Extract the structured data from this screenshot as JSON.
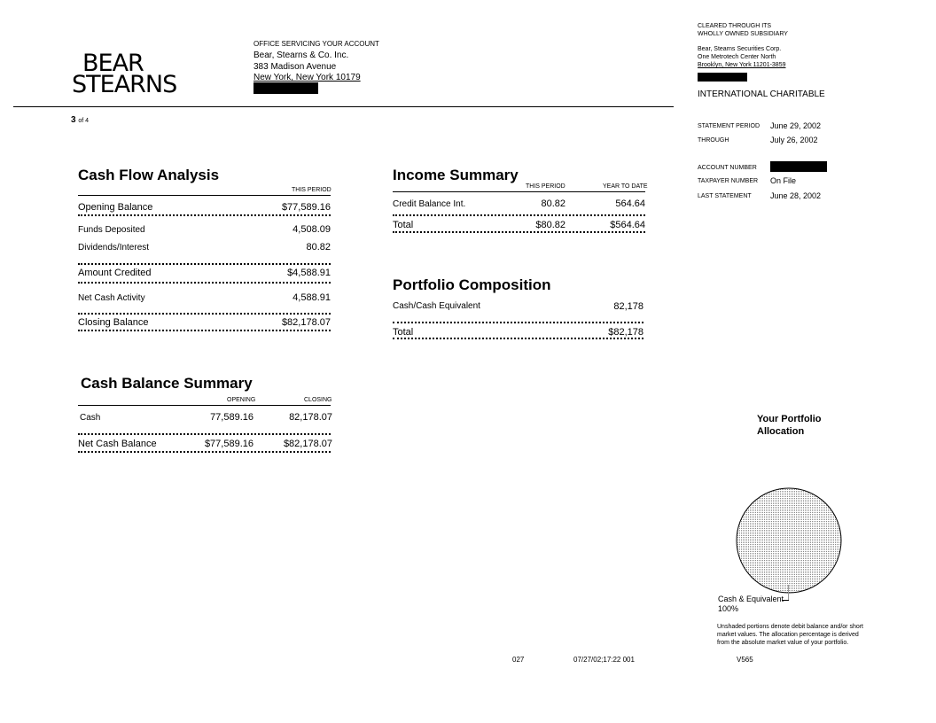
{
  "logo": {
    "line1": "BEAR",
    "line2": "STEARNS"
  },
  "office": {
    "label": "OFFICE SERVICING YOUR ACCOUNT",
    "name": "Bear, Stearns & Co. Inc.",
    "street": "383 Madison Avenue",
    "city": "New York, New York  10179"
  },
  "clearing": {
    "line1": "CLEARED  THROUGH  ITS",
    "line2": "WHOLLY  OWNED  SUBSIDIARY",
    "name": "Bear, Stearns Securities Corp.",
    "street": "One Metrotech  Center  North",
    "city": "Brooklyn,  New York  11201-3859"
  },
  "account_name": "INTERNATIONAL  CHARITABLE",
  "page": {
    "number": "3",
    "of": "of 4"
  },
  "statement": {
    "period_label": "STATEMENT  PERIOD",
    "period": "June 29, 2002",
    "through_label": "THROUGH",
    "through": "July 26, 2002",
    "account_label": "ACCOUNT  NUMBER",
    "taxpayer_label": "TAXPAYER  NUMBER",
    "taxpayer": "On File",
    "last_label": "LAST  STATEMENT",
    "last": "June 28, 2002"
  },
  "cash_flow": {
    "title": "Cash Flow Analysis",
    "col": "THIS PERIOD",
    "rows": [
      {
        "label": "Opening Balance",
        "value": "$77,589.16"
      },
      {
        "label": "Funds Deposited",
        "value": "4,508.09"
      },
      {
        "label": "Dividends/Interest",
        "value": "80.82"
      },
      {
        "label": "Amount Credited",
        "value": "$4,588.91"
      },
      {
        "label": "Net Cash Activity",
        "value": "4,588.91"
      },
      {
        "label": "Closing Balance",
        "value": "$82,178.07"
      }
    ]
  },
  "income": {
    "title": "Income Summary",
    "col1": "THIS PERIOD",
    "col2": "YEAR TO DATE",
    "rows": [
      {
        "label": "Credit Balance Int.",
        "period": "80.82",
        "ytd": "564.64"
      },
      {
        "label": "Total",
        "period": "$80.82",
        "ytd": "$564.64"
      }
    ]
  },
  "portfolio": {
    "title": "Portfolio Composition",
    "rows": [
      {
        "label": "Cash/Cash Equivalent",
        "value": "82,178"
      },
      {
        "label": "Total",
        "value": "$82,178"
      }
    ]
  },
  "cash_balance": {
    "title": "Cash Balance Summary",
    "col1": "OPENING",
    "col2": "CLOSING",
    "rows": [
      {
        "label": "Cash",
        "opening": "77,589.16",
        "closing": "82,178.07"
      },
      {
        "label": "Net Cash Balance",
        "opening": "$77,589.16",
        "closing": "$82,178.07"
      }
    ]
  },
  "allocation": {
    "title1": "Your Portfolio",
    "title2": "Allocation",
    "label": "Cash & Equivalent",
    "percent": "100%",
    "note1": "Unshaded portions  denote  debit  balance  and/or  short",
    "note2": "market  values.   The  allocation  percentage  is derived",
    "note3": "from  the  absolute  market  value  of  your  portfolio."
  },
  "footer": {
    "code1": "027",
    "stamp": "07/27/02;17:22  001",
    "code2": "V565"
  }
}
